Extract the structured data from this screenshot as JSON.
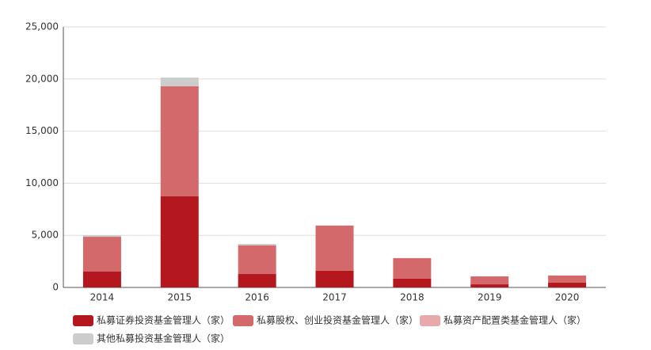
{
  "chart_data": {
    "type": "stacked_bar",
    "categories": [
      "2014",
      "2015",
      "2016",
      "2017",
      "2018",
      "2019",
      "2020"
    ],
    "series": [
      {
        "name": "私募证券投资基金管理人（家）",
        "color": "#b5171f",
        "values": [
          1520,
          8740,
          1290,
          1600,
          840,
          300,
          460
        ]
      },
      {
        "name": "私募股权、创业投资基金管理人（家）",
        "color": "#d4696c",
        "values": [
          3340,
          10560,
          2740,
          4330,
          1970,
          760,
          680
        ]
      },
      {
        "name": "私募资产配置类基金管理人（家）",
        "color": "#e8a9ab",
        "values": [
          0,
          0,
          0,
          0,
          10,
          10,
          10
        ]
      },
      {
        "name": "其他私募投资基金管理人（家）",
        "color": "#cccccc",
        "values": [
          150,
          840,
          150,
          30,
          0,
          0,
          0
        ]
      }
    ],
    "ylim": [
      0,
      25000
    ],
    "yticks": [
      0,
      {
        "value": 5000,
        "label": "5,000"
      },
      {
        "value": 10000,
        "label": "10,000"
      },
      {
        "value": 15000,
        "label": "15,000"
      },
      {
        "value": 20000,
        "label": "20,000"
      },
      {
        "value": 25000,
        "label": "25,000"
      }
    ],
    "grid": true
  }
}
